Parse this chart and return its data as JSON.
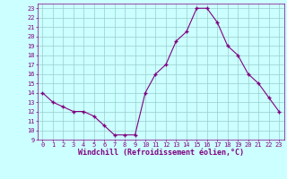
{
  "x": [
    0,
    1,
    2,
    3,
    4,
    5,
    6,
    7,
    8,
    9,
    10,
    11,
    12,
    13,
    14,
    15,
    16,
    17,
    18,
    19,
    20,
    21,
    22,
    23
  ],
  "y": [
    14,
    13,
    12.5,
    12,
    12,
    11.5,
    10.5,
    9.5,
    9.5,
    9.5,
    14,
    16,
    17,
    19.5,
    20.5,
    23,
    23,
    21.5,
    19,
    18,
    16,
    15,
    13.5,
    12
  ],
  "line_color": "#800080",
  "marker": "P",
  "marker_color": "#800080",
  "bg_color": "#ccffff",
  "grid_color": "#99cccc",
  "xlabel": "Windchill (Refroidissement éolien,°C)",
  "xlabel_color": "#800080",
  "tick_color": "#800080",
  "ylim": [
    9,
    23.5
  ],
  "xlim": [
    -0.5,
    23.5
  ],
  "yticks": [
    9,
    10,
    11,
    12,
    13,
    14,
    15,
    16,
    17,
    18,
    19,
    20,
    21,
    22,
    23
  ],
  "xticks": [
    0,
    1,
    2,
    3,
    4,
    5,
    6,
    7,
    8,
    9,
    10,
    11,
    12,
    13,
    14,
    15,
    16,
    17,
    18,
    19,
    20,
    21,
    22,
    23
  ],
  "figsize": [
    3.2,
    2.0
  ],
  "dpi": 100
}
